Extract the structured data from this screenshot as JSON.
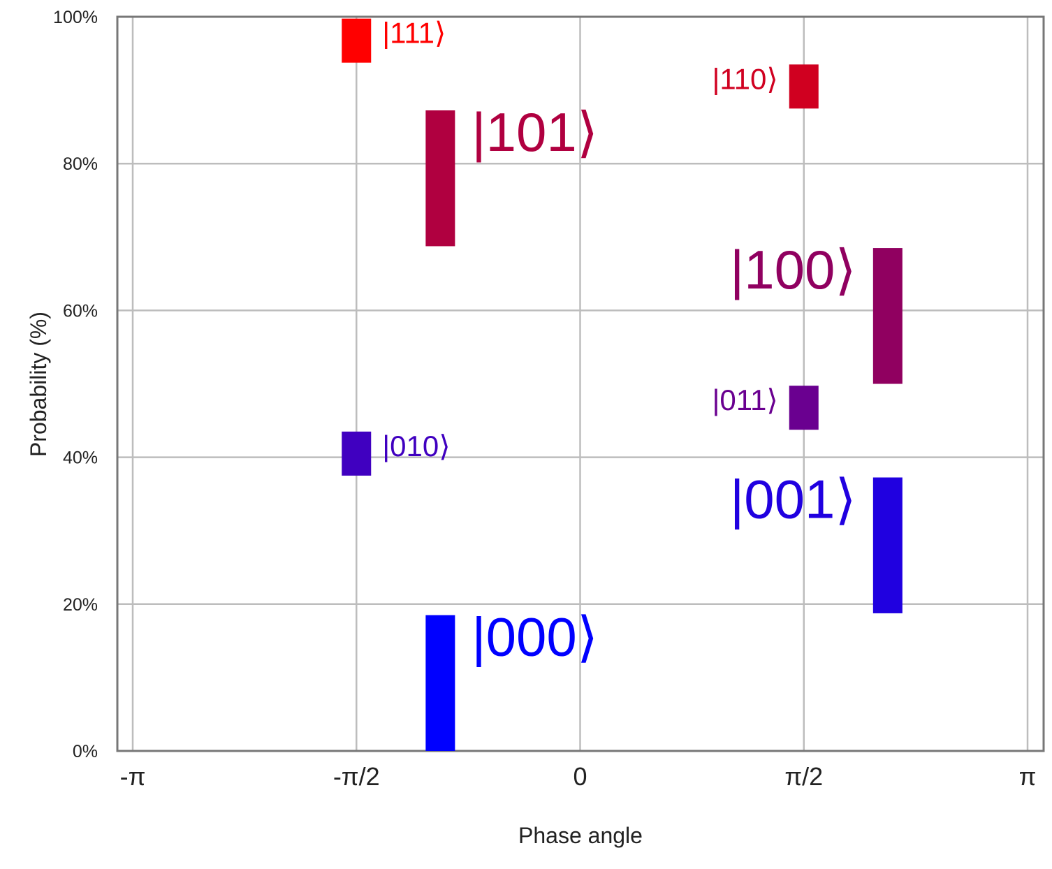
{
  "chart_data": {
    "type": "scatter",
    "xlabel": "Phase angle",
    "ylabel": "Probability (%)",
    "xlim": [
      -3.14159,
      3.14159
    ],
    "ylim": [
      0,
      100
    ],
    "grid": true,
    "x_ticks": [
      {
        "value": -3.14159,
        "label": "-π"
      },
      {
        "value": -1.5708,
        "label": "-π/2"
      },
      {
        "value": 0,
        "label": "0"
      },
      {
        "value": 1.5708,
        "label": "π/2"
      },
      {
        "value": 3.14159,
        "label": "π"
      }
    ],
    "y_ticks": [
      {
        "value": 0,
        "label": "0%"
      },
      {
        "value": 20,
        "label": "20%"
      },
      {
        "value": 40,
        "label": "40%"
      },
      {
        "value": 60,
        "label": "60%"
      },
      {
        "value": 80,
        "label": "80%"
      },
      {
        "value": 100,
        "label": "100%"
      }
    ],
    "points": [
      {
        "state": "|000⟩",
        "phase": -0.9817,
        "prob_low": 0,
        "prob_high": 18.5,
        "color": "#0000ff",
        "label_side": "right",
        "size": "large"
      },
      {
        "state": "|001⟩",
        "phase": 2.1598,
        "prob_low": 18.75,
        "prob_high": 37.25,
        "color": "#2000e0",
        "label_side": "left",
        "size": "large"
      },
      {
        "state": "|010⟩",
        "phase": -1.5708,
        "prob_low": 37.5,
        "prob_high": 43.5,
        "color": "#4000c0",
        "label_side": "right",
        "size": "small"
      },
      {
        "state": "|011⟩",
        "phase": 1.5708,
        "prob_low": 43.75,
        "prob_high": 49.75,
        "color": "#6a0090",
        "label_side": "left",
        "size": "small"
      },
      {
        "state": "|100⟩",
        "phase": 2.1598,
        "prob_low": 50,
        "prob_high": 68.5,
        "color": "#900060",
        "label_side": "left",
        "size": "large"
      },
      {
        "state": "|101⟩",
        "phase": -0.9817,
        "prob_low": 68.75,
        "prob_high": 87.25,
        "color": "#b00040",
        "label_side": "right",
        "size": "large"
      },
      {
        "state": "|110⟩",
        "phase": 1.5708,
        "prob_low": 87.5,
        "prob_high": 93.5,
        "color": "#d00020",
        "label_side": "left",
        "size": "small"
      },
      {
        "state": "|111⟩",
        "phase": -1.5708,
        "prob_low": 93.75,
        "prob_high": 99.75,
        "color": "#ff0000",
        "label_side": "right",
        "size": "small"
      }
    ]
  }
}
